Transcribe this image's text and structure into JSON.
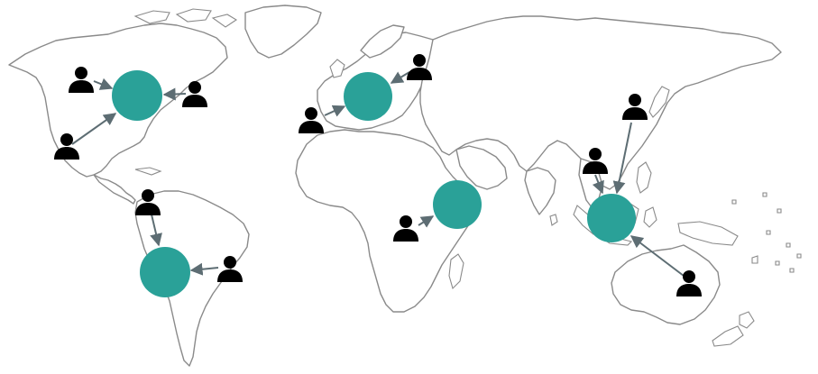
{
  "colors": {
    "hub": "#2aa198",
    "arrow": "#5d6d73",
    "user": "#000000",
    "coastline": "#8a8a8a",
    "background": "#ffffff"
  },
  "icons": {
    "hub": "teal-circle",
    "user": "person-icon",
    "link": "arrow"
  },
  "regions": [
    {
      "id": "north-america",
      "users": 3
    },
    {
      "id": "south-america",
      "users": 2
    },
    {
      "id": "europe",
      "users": 2
    },
    {
      "id": "africa",
      "users": 1
    },
    {
      "id": "asia",
      "users": 2
    },
    {
      "id": "oceania",
      "users": 1
    }
  ]
}
